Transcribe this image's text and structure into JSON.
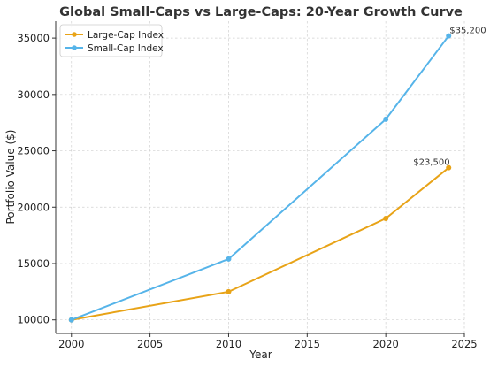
{
  "chart_data": {
    "type": "line",
    "title": "Global Small-Caps vs Large-Caps: 20-Year Growth Curve",
    "xlabel": "Year",
    "ylabel": "Portfolio Value ($)",
    "xlim": [
      1999,
      2025
    ],
    "ylim": [
      8800,
      36500
    ],
    "xticks": [
      2000,
      2005,
      2010,
      2015,
      2020,
      2025
    ],
    "yticks": [
      10000,
      15000,
      20000,
      25000,
      30000,
      35000
    ],
    "grid": true,
    "legend_position": "top-left",
    "series": [
      {
        "name": "Large-Cap Index",
        "color": "#E8A317",
        "x": [
          2000,
          2010,
          2020,
          2024
        ],
        "y": [
          10000,
          12500,
          19000,
          23500
        ]
      },
      {
        "name": "Small-Cap Index",
        "color": "#56B4E9",
        "x": [
          2000,
          2010,
          2020,
          2024
        ],
        "y": [
          10000,
          15400,
          27800,
          35200
        ]
      }
    ],
    "annotations": [
      {
        "text": "$35,200",
        "x": 2024,
        "y": 35200,
        "series": "Small-Cap Index"
      },
      {
        "text": "$23,500",
        "x": 2024,
        "y": 23500,
        "series": "Large-Cap Index"
      }
    ]
  }
}
